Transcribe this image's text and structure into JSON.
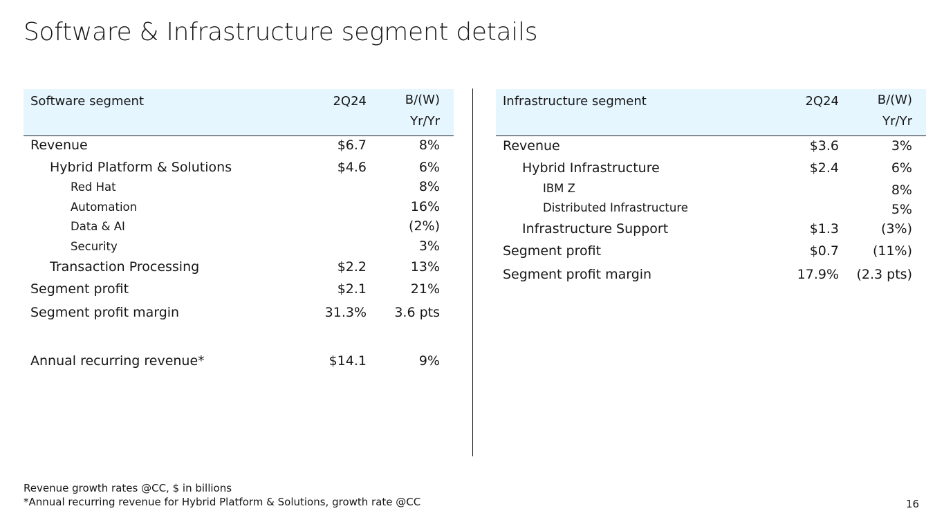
{
  "title": "Software & Infrastructure segment details",
  "software": {
    "header": {
      "label": "Software segment",
      "period": "2Q24",
      "bw_line1": "B/(W)",
      "bw_line2": "Yr/Yr"
    },
    "rows": [
      {
        "label": "Revenue",
        "value": "$6.7",
        "change": "8%"
      },
      {
        "label": "Hybrid Platform & Solutions",
        "value": "$4.6",
        "change": "6%"
      },
      {
        "label": "Red Hat",
        "value": "",
        "change": "8%"
      },
      {
        "label": "Automation",
        "value": "",
        "change": "16%"
      },
      {
        "label": "Data & AI",
        "value": "",
        "change": "(2%)"
      },
      {
        "label": "Security",
        "value": "",
        "change": "3%"
      },
      {
        "label": "Transaction Processing",
        "value": "$2.2",
        "change": "13%"
      },
      {
        "label": "Segment profit",
        "value": "$2.1",
        "change": "21%"
      },
      {
        "label": "Segment profit margin",
        "value": "31.3%",
        "change": "3.6 pts"
      },
      {
        "label": "Annual recurring revenue*",
        "value": "$14.1",
        "change": "9%"
      }
    ]
  },
  "infrastructure": {
    "header": {
      "label": "Infrastructure segment",
      "period": "2Q24",
      "bw_line1": "B/(W)",
      "bw_line2": "Yr/Yr"
    },
    "rows": [
      {
        "label": "Revenue",
        "value": "$3.6",
        "change": "3%"
      },
      {
        "label": "Hybrid Infrastructure",
        "value": "$2.4",
        "change": "6%"
      },
      {
        "label": "IBM Z",
        "value": "",
        "change": "8%"
      },
      {
        "label": "Distributed Infrastructure",
        "value": "",
        "change": "5%"
      },
      {
        "label": "Infrastructure Support",
        "value": "$1.3",
        "change": "(3%)"
      },
      {
        "label": "Segment profit",
        "value": "$0.7",
        "change": "(11%)"
      },
      {
        "label": "Segment profit margin",
        "value": "17.9%",
        "change": "(2.3 pts)"
      }
    ]
  },
  "footnotes": {
    "line1": "Revenue growth rates @CC, $ in billions",
    "line2": "*Annual recurring revenue for Hybrid Platform & Solutions, growth rate @CC"
  },
  "page_number": "16",
  "colors": {
    "header_bg": "#e5f6ff",
    "text": "#161616"
  }
}
